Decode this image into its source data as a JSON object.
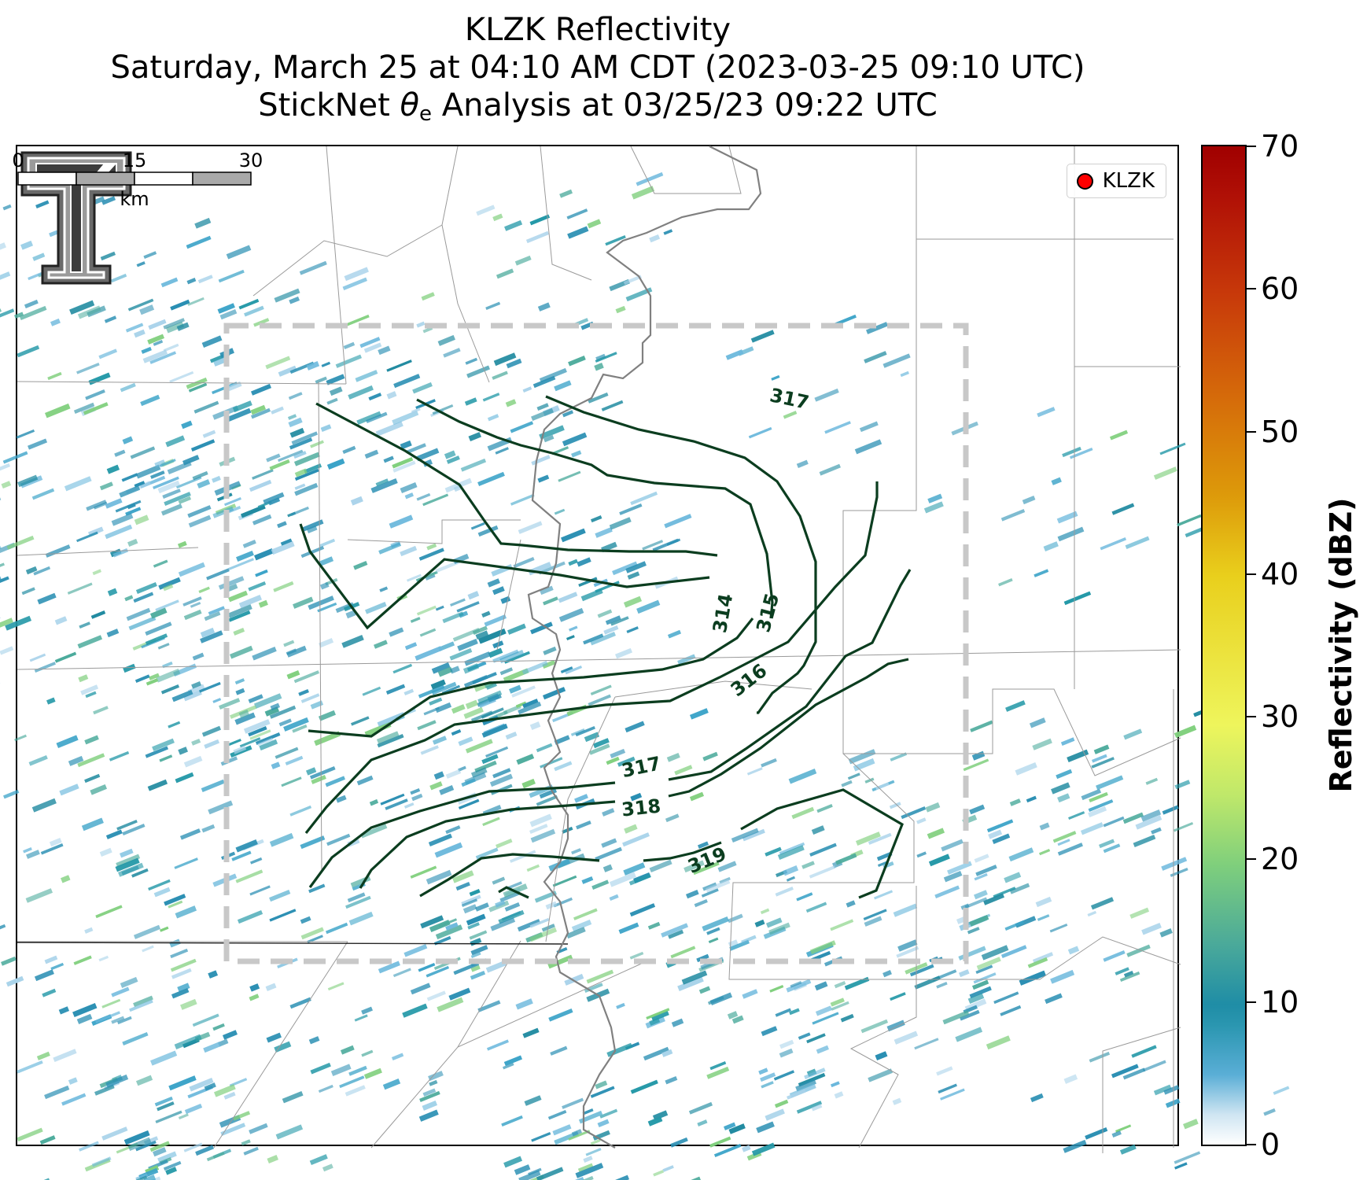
{
  "title": {
    "line1": "KLZK Reflectivity",
    "line2": "Saturday, March 25 at 04:10 AM CDT (2023-03-25 09:10 UTC)",
    "line3_prefix": "StickNet ",
    "line3_symbol": "θ",
    "line3_sub": "e",
    "line3_suffix": " Analysis at 03/25/23 09:22 UTC"
  },
  "legend": {
    "label": "KLZK",
    "marker_color": "#ff0000"
  },
  "contours": {
    "color": "#0b3d1f",
    "labels": [
      "314",
      "315",
      "316",
      "317",
      "317",
      "318",
      "319"
    ]
  },
  "scalebar": {
    "ticks": [
      "0",
      "15",
      "30"
    ],
    "unit": "km"
  },
  "colorbar": {
    "label": "Reflectivity (dBZ)",
    "min": 0,
    "max": 70,
    "ticks": [
      "0",
      "10",
      "20",
      "30",
      "40",
      "50",
      "60",
      "70"
    ]
  },
  "analysis_box": {
    "style": "dashed",
    "color": "#cccccc"
  },
  "logo": {
    "name": "texas-tech-double-t"
  }
}
